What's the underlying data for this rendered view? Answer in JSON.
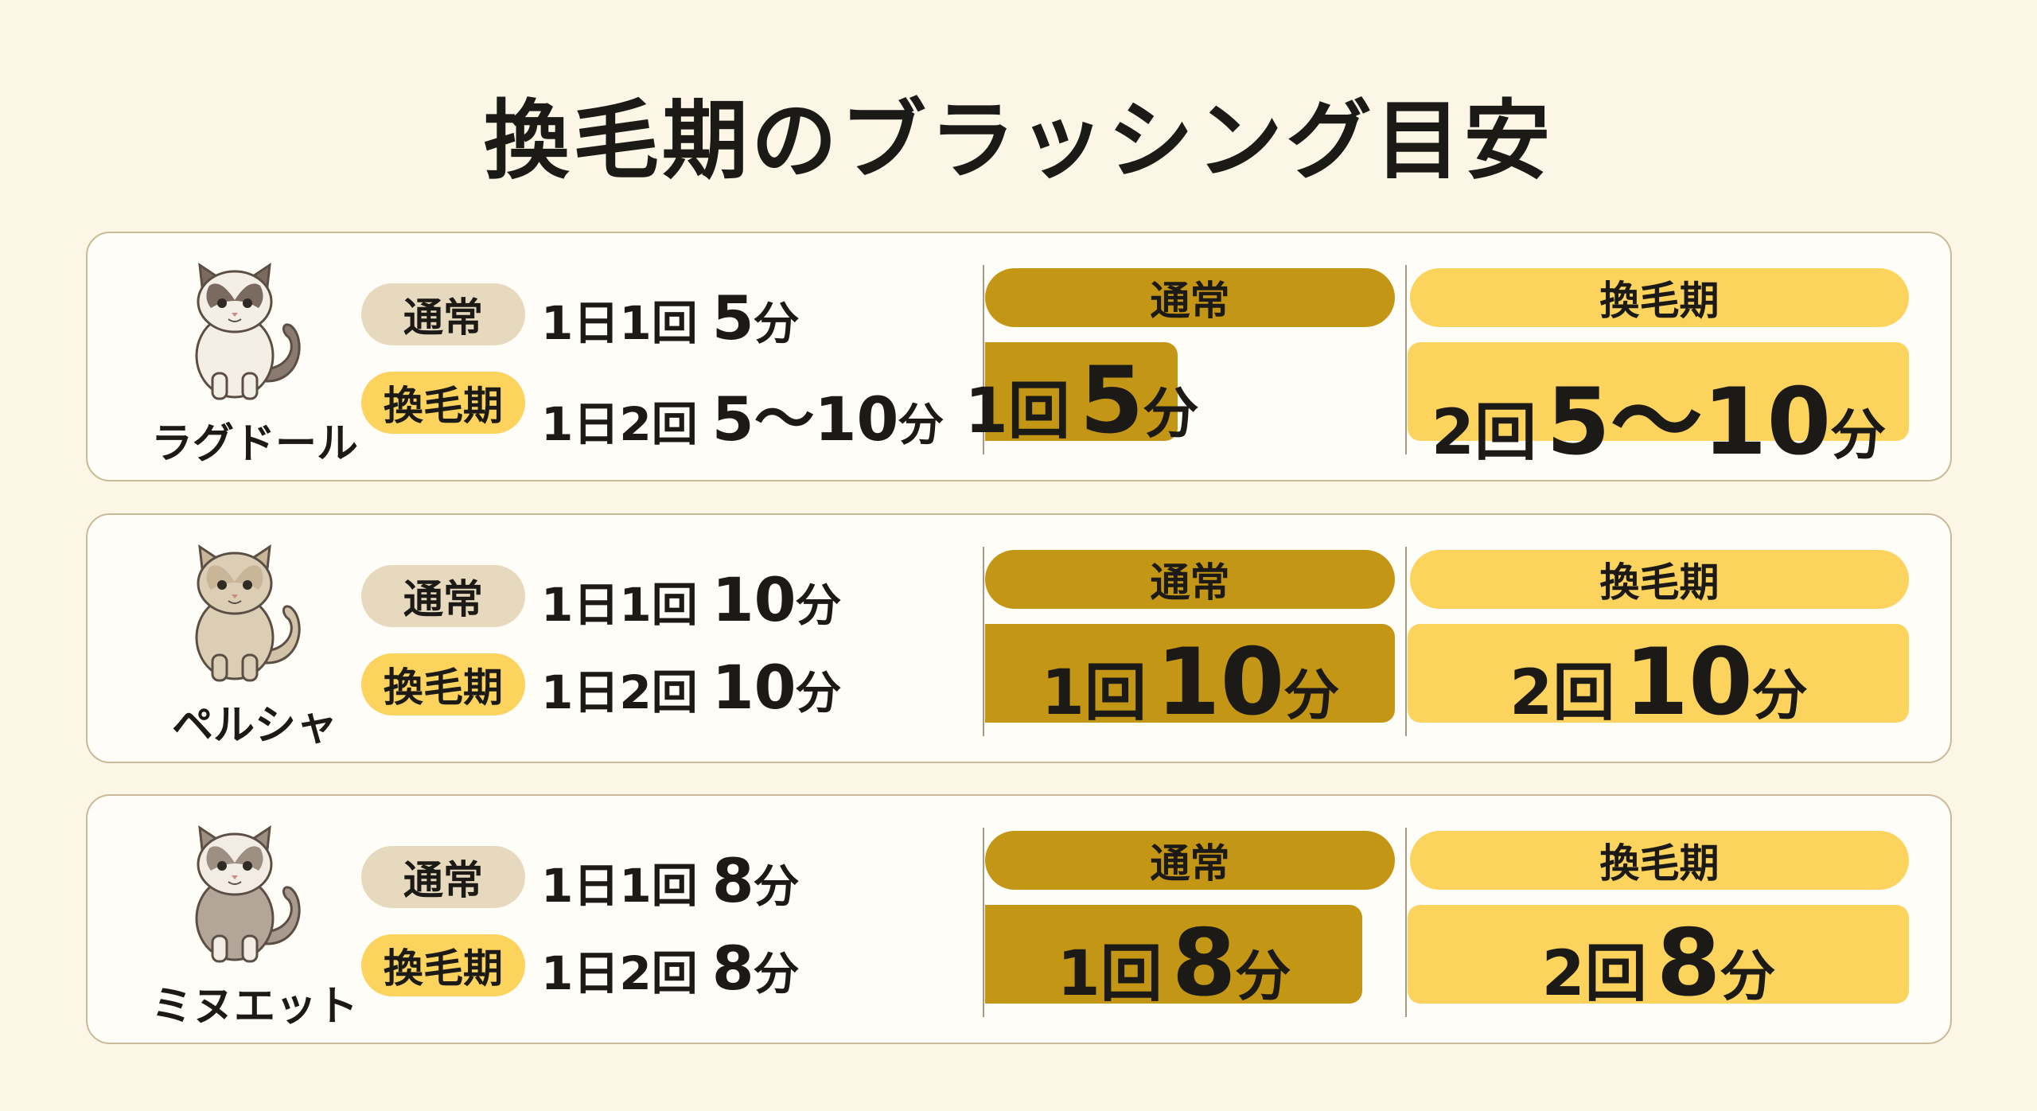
{
  "title": "換毛期のブラッシング目安",
  "rows": [
    {
      "breed": "ラグドール",
      "normal": {
        "tag": "通常",
        "freq": "1日1回",
        "time": "5",
        "unit": "分"
      },
      "shed": {
        "tag": "換毛期",
        "freq": "1日2回",
        "time": "5〜10",
        "unit": "分"
      },
      "panel_normal": {
        "header": "通常",
        "count": "1回",
        "time": "5",
        "unit": "分"
      },
      "panel_shed": {
        "header": "換毛期",
        "count": "2回",
        "time": "5〜10",
        "unit": "分"
      }
    },
    {
      "breed": "ペルシャ",
      "normal": {
        "tag": "通常",
        "freq": "1日1回",
        "time": "10",
        "unit": "分"
      },
      "shed": {
        "tag": "換毛期",
        "freq": "1日2回",
        "time": "10",
        "unit": "分"
      },
      "panel_normal": {
        "header": "通常",
        "count": "1回",
        "time": "10",
        "unit": "分"
      },
      "panel_shed": {
        "header": "換毛期",
        "count": "2回",
        "time": "10",
        "unit": "分"
      }
    },
    {
      "breed": "ミヌエット",
      "normal": {
        "tag": "通常",
        "freq": "1日1回",
        "time": "8",
        "unit": "分"
      },
      "shed": {
        "tag": "換毛期",
        "freq": "1日2回",
        "time": "8",
        "unit": "分"
      },
      "panel_normal": {
        "header": "通常",
        "count": "1回",
        "time": "8",
        "unit": "分"
      },
      "panel_shed": {
        "header": "換毛期",
        "count": "2回",
        "time": "8",
        "unit": "分"
      }
    }
  ]
}
